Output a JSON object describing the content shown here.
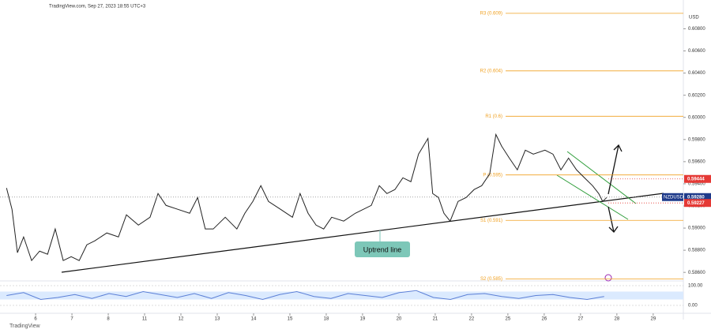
{
  "header": "TradingView.com, Sep 27, 2023 18:55 UTC+3",
  "footer": "TradingView",
  "chart_data": [
    {
      "type": "line",
      "symbol": "NZDUSD",
      "currency": "USD",
      "annotation": "Uptrend line",
      "countdown": "04:07",
      "color": "#222222",
      "x": [
        -0.8,
        -0.65,
        -0.5,
        -0.33,
        -0.11,
        0.11,
        0.33,
        0.54,
        0.76,
        0.98,
        1.2,
        1.41,
        1.63,
        1.96,
        2.28,
        2.5,
        2.83,
        3.15,
        3.37,
        3.59,
        3.91,
        4.24,
        4.46,
        4.67,
        4.89,
        5.22,
        5.54,
        5.76,
        5.98,
        6.2,
        6.41,
        6.74,
        7.07,
        7.28,
        7.5,
        7.72,
        7.93,
        8.15,
        8.48,
        8.8,
        9.24,
        9.46,
        9.67,
        9.89,
        10.11,
        10.33,
        10.54,
        10.8,
        10.93,
        11.09,
        11.24,
        11.41,
        11.63,
        11.85,
        12.07,
        12.28,
        12.5,
        12.67,
        12.83,
        13.04,
        13.26,
        13.48,
        13.7,
        14.02,
        14.24,
        14.46,
        14.67,
        14.89,
        15.11,
        15.33,
        15.5,
        15.61,
        15.72
      ],
      "values": [
        0.59362,
        0.5917,
        0.58778,
        0.5892,
        0.58707,
        0.58792,
        0.58764,
        0.58992,
        0.58707,
        0.58742,
        0.58707,
        0.58849,
        0.58885,
        0.58956,
        0.5892,
        0.5912,
        0.59027,
        0.59098,
        0.59312,
        0.59205,
        0.5917,
        0.59134,
        0.59276,
        0.58992,
        0.58992,
        0.59098,
        0.58992,
        0.59134,
        0.59241,
        0.59383,
        0.59241,
        0.5917,
        0.59098,
        0.59312,
        0.59134,
        0.59027,
        0.58992,
        0.59098,
        0.59063,
        0.59134,
        0.59205,
        0.59383,
        0.59312,
        0.59348,
        0.59454,
        0.59419,
        0.59668,
        0.5981,
        0.59312,
        0.59276,
        0.59134,
        0.59063,
        0.59241,
        0.59276,
        0.59348,
        0.59383,
        0.5949,
        0.59846,
        0.59739,
        0.59632,
        0.59526,
        0.59704,
        0.59668,
        0.59704,
        0.59668,
        0.59526,
        0.59632,
        0.59526,
        0.59454,
        0.59383,
        0.59312,
        0.59241,
        0.59276
      ],
      "xlim": [
        -0.98,
        17.83
      ],
      "xticks": [
        {
          "value": 0,
          "label": "6"
        },
        {
          "value": 1,
          "label": "7"
        },
        {
          "value": 2,
          "label": "8"
        },
        {
          "value": 3,
          "label": "11"
        },
        {
          "value": 4,
          "label": "12"
        },
        {
          "value": 5,
          "label": "13"
        },
        {
          "value": 6,
          "label": "14"
        },
        {
          "value": 7,
          "label": "15"
        },
        {
          "value": 8,
          "label": "18"
        },
        {
          "value": 9,
          "label": "19"
        },
        {
          "value": 10,
          "label": "20"
        },
        {
          "value": 11,
          "label": "21"
        },
        {
          "value": 12,
          "label": "22"
        },
        {
          "value": 13,
          "label": "25"
        },
        {
          "value": 14,
          "label": "26"
        },
        {
          "value": 15,
          "label": "27"
        },
        {
          "value": 16,
          "label": "28"
        },
        {
          "value": 17,
          "label": "29"
        }
      ],
      "ylim": [
        0.5853,
        0.6106
      ],
      "yticks": [
        {
          "value": 0.586,
          "label": "0.58600"
        },
        {
          "value": 0.588,
          "label": "0.58800"
        },
        {
          "value": 0.59,
          "label": "0.59000"
        },
        {
          "value": 0.592,
          "label": "0.59200"
        },
        {
          "value": 0.594,
          "label": "0.59400"
        },
        {
          "value": 0.596,
          "label": "0.59600"
        },
        {
          "value": 0.598,
          "label": "0.59800"
        },
        {
          "value": 0.6,
          "label": "0.60000"
        },
        {
          "value": 0.602,
          "label": "0.60200"
        },
        {
          "value": 0.604,
          "label": "0.60400"
        },
        {
          "value": 0.606,
          "label": "0.60600"
        },
        {
          "value": 0.608,
          "label": "0.60800"
        }
      ],
      "levels": [
        {
          "value": 0.6094,
          "label": "R3 (0.609)"
        },
        {
          "value": 0.6042,
          "label": "R2 (0.604)"
        },
        {
          "value": 0.6001,
          "label": "R1 (0.6)"
        },
        {
          "value": 0.5948,
          "label": "P (0.595)"
        },
        {
          "value": 0.5907,
          "label": "S1 (0.591)"
        },
        {
          "value": 0.5854,
          "label": "S2 (0.585)"
        }
      ],
      "level_color": "#f0a020",
      "price_labels": [
        {
          "value": 0.59444,
          "color": "#e53935"
        },
        {
          "value": {
            "value": 0.5928,
            "label": "0.59280"
          },
          "color": "#1e3a8a"
        },
        {
          "value": 0.59227,
          "color": "#e53935"
        }
      ]
    },
    {
      "type": "line",
      "color": "#5b7fd6",
      "x": [
        -0.8,
        -0.33,
        0.14,
        0.61,
        1.08,
        1.55,
        2.02,
        2.49,
        2.96,
        3.43,
        3.9,
        4.37,
        4.84,
        5.31,
        5.78,
        6.25,
        6.72,
        7.19,
        7.66,
        8.13,
        8.6,
        9.07,
        9.54,
        10.01,
        10.48,
        10.95,
        11.42,
        11.89,
        12.36,
        12.83,
        13.3,
        13.77,
        14.24,
        14.71,
        15.18,
        15.65
      ],
      "values": [
        50,
        65,
        30,
        40,
        55,
        35,
        60,
        45,
        70,
        55,
        40,
        60,
        35,
        65,
        50,
        30,
        55,
        70,
        45,
        35,
        60,
        50,
        40,
        65,
        75,
        40,
        30,
        55,
        60,
        45,
        35,
        50,
        55,
        40,
        30,
        45
      ],
      "ylim": [
        -40,
        120
      ],
      "yticks": [
        {
          "value": 100,
          "label": "100.00"
        },
        {
          "value": 0,
          "label": "0.00"
        }
      ],
      "band": [
        30,
        70
      ],
      "band_color": "#dbeafe"
    }
  ]
}
